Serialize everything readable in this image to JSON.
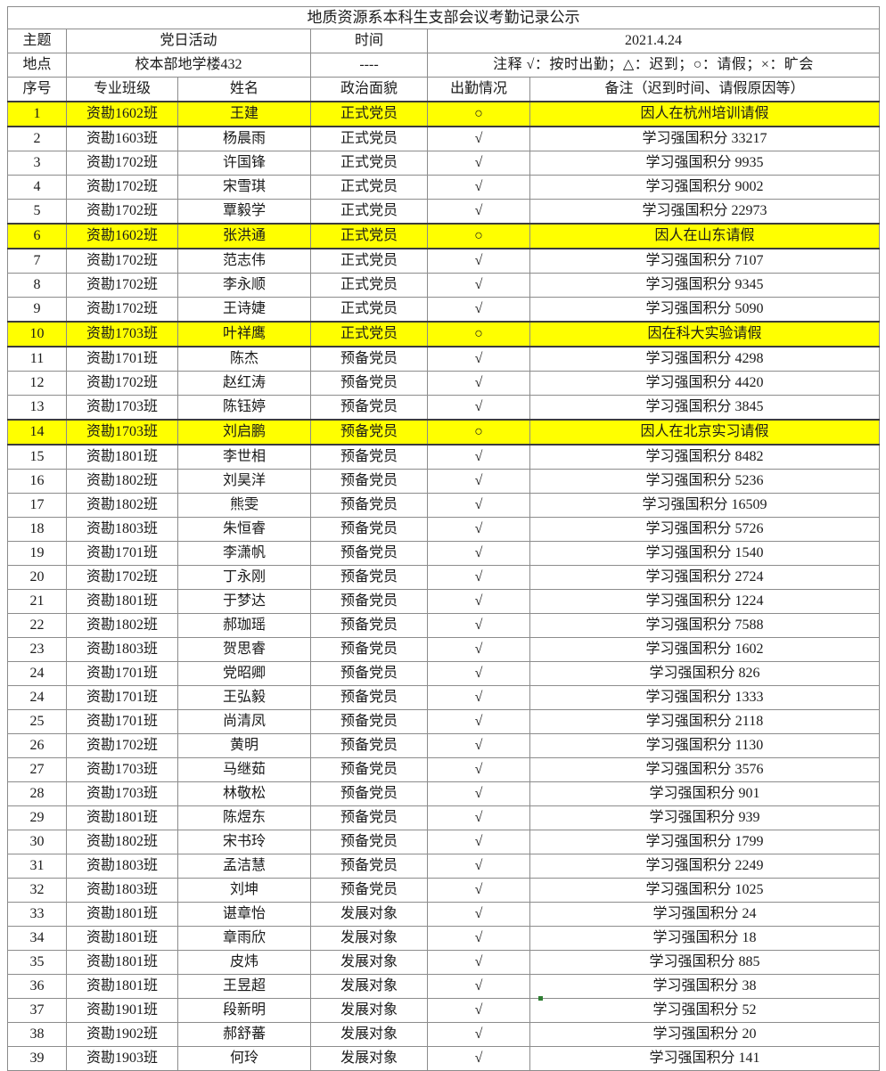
{
  "page": {
    "title": "地质资源系本科生支部会议考勤记录公示"
  },
  "info": {
    "subject_label": "主题",
    "subject_value": "党日活动",
    "time_label": "时间",
    "date_value": "2021.4.24",
    "location_label": "地点",
    "location_value": "校本部地学楼432",
    "time_dash": "----",
    "legend": "注释 √：按时出勤；△：迟到；○：请假；×：旷会"
  },
  "table": {
    "headers": [
      "序号",
      "专业班级",
      "姓名",
      "政治面貌",
      "出勤情况",
      "备注（迟到时间、请假原因等）"
    ],
    "rows": [
      {
        "no": "1",
        "class_name": "资勘1602班",
        "name": "王建",
        "status": "正式党员",
        "attend": "○",
        "note": "因人在杭州培训请假",
        "highlight": true
      },
      {
        "no": "2",
        "class_name": "资勘1603班",
        "name": "杨晨雨",
        "status": "正式党员",
        "attend": "√",
        "note": "学习强国积分 33217",
        "highlight": false
      },
      {
        "no": "3",
        "class_name": "资勘1702班",
        "name": "许国锋",
        "status": "正式党员",
        "attend": "√",
        "note": "学习强国积分 9935",
        "highlight": false
      },
      {
        "no": "4",
        "class_name": "资勘1702班",
        "name": "宋雪琪",
        "status": "正式党员",
        "attend": "√",
        "note": "学习强国积分 9002",
        "highlight": false
      },
      {
        "no": "5",
        "class_name": "资勘1702班",
        "name": "覃毅学",
        "status": "正式党员",
        "attend": "√",
        "note": "学习强国积分 22973",
        "highlight": false
      },
      {
        "no": "6",
        "class_name": "资勘1602班",
        "name": "张洪通",
        "status": "正式党员",
        "attend": "○",
        "note": "因人在山东请假",
        "highlight": true
      },
      {
        "no": "7",
        "class_name": "资勘1702班",
        "name": "范志伟",
        "status": "正式党员",
        "attend": "√",
        "note": "学习强国积分 7107",
        "highlight": false
      },
      {
        "no": "8",
        "class_name": "资勘1702班",
        "name": "李永顺",
        "status": "正式党员",
        "attend": "√",
        "note": "学习强国积分 9345",
        "highlight": false
      },
      {
        "no": "9",
        "class_name": "资勘1702班",
        "name": "王诗婕",
        "status": "正式党员",
        "attend": "√",
        "note": "学习强国积分 5090",
        "highlight": false
      },
      {
        "no": "10",
        "class_name": "资勘1703班",
        "name": "叶祥鹰",
        "status": "正式党员",
        "attend": "○",
        "note": "因在科大实验请假",
        "highlight": true
      },
      {
        "no": "11",
        "class_name": "资勘1701班",
        "name": "陈杰",
        "status": "预备党员",
        "attend": "√",
        "note": "学习强国积分 4298",
        "highlight": false
      },
      {
        "no": "12",
        "class_name": "资勘1702班",
        "name": "赵红涛",
        "status": "预备党员",
        "attend": "√",
        "note": "学习强国积分 4420",
        "highlight": false
      },
      {
        "no": "13",
        "class_name": "资勘1703班",
        "name": "陈钰婷",
        "status": "预备党员",
        "attend": "√",
        "note": "学习强国积分 3845",
        "highlight": false
      },
      {
        "no": "14",
        "class_name": "资勘1703班",
        "name": "刘启鹏",
        "status": "预备党员",
        "attend": "○",
        "note": "因人在北京实习请假",
        "highlight": true
      },
      {
        "no": "15",
        "class_name": "资勘1801班",
        "name": "李世相",
        "status": "预备党员",
        "attend": "√",
        "note": "学习强国积分 8482",
        "highlight": false
      },
      {
        "no": "16",
        "class_name": "资勘1802班",
        "name": "刘昊洋",
        "status": "预备党员",
        "attend": "√",
        "note": "学习强国积分 5236",
        "highlight": false
      },
      {
        "no": "17",
        "class_name": "资勘1802班",
        "name": "熊雯",
        "status": "预备党员",
        "attend": "√",
        "note": "学习强国积分 16509",
        "highlight": false
      },
      {
        "no": "18",
        "class_name": "资勘1803班",
        "name": "朱恒睿",
        "status": "预备党员",
        "attend": "√",
        "note": "学习强国积分 5726",
        "highlight": false
      },
      {
        "no": "19",
        "class_name": "资勘1701班",
        "name": "李潇帆",
        "status": "预备党员",
        "attend": "√",
        "note": "学习强国积分 1540",
        "highlight": false
      },
      {
        "no": "20",
        "class_name": "资勘1702班",
        "name": "丁永刚",
        "status": "预备党员",
        "attend": "√",
        "note": "学习强国积分 2724",
        "highlight": false
      },
      {
        "no": "21",
        "class_name": "资勘1801班",
        "name": "于梦达",
        "status": "预备党员",
        "attend": "√",
        "note": "学习强国积分 1224",
        "highlight": false
      },
      {
        "no": "22",
        "class_name": "资勘1802班",
        "name": "郝珈瑶",
        "status": "预备党员",
        "attend": "√",
        "note": "学习强国积分 7588",
        "highlight": false
      },
      {
        "no": "23",
        "class_name": "资勘1803班",
        "name": "贺思睿",
        "status": "预备党员",
        "attend": "√",
        "note": "学习强国积分 1602",
        "highlight": false
      },
      {
        "no": "24",
        "class_name": "资勘1701班",
        "name": "党昭卿",
        "status": "预备党员",
        "attend": "√",
        "note": "学习强国积分 826",
        "highlight": false
      },
      {
        "no": "24",
        "class_name": "资勘1701班",
        "name": "王弘毅",
        "status": "预备党员",
        "attend": "√",
        "note": "学习强国积分 1333",
        "highlight": false
      },
      {
        "no": "25",
        "class_name": "资勘1701班",
        "name": "尚清凤",
        "status": "预备党员",
        "attend": "√",
        "note": "学习强国积分 2118",
        "highlight": false
      },
      {
        "no": "26",
        "class_name": "资勘1702班",
        "name": "黄明",
        "status": "预备党员",
        "attend": "√",
        "note": "学习强国积分 1130",
        "highlight": false
      },
      {
        "no": "27",
        "class_name": "资勘1703班",
        "name": "马继茹",
        "status": "预备党员",
        "attend": "√",
        "note": "学习强国积分 3576",
        "highlight": false
      },
      {
        "no": "28",
        "class_name": "资勘1703班",
        "name": "林敬松",
        "status": "预备党员",
        "attend": "√",
        "note": "学习强国积分 901",
        "highlight": false
      },
      {
        "no": "29",
        "class_name": "资勘1801班",
        "name": "陈煜东",
        "status": "预备党员",
        "attend": "√",
        "note": "学习强国积分 939",
        "highlight": false
      },
      {
        "no": "30",
        "class_name": "资勘1802班",
        "name": "宋书玲",
        "status": "预备党员",
        "attend": "√",
        "note": "学习强国积分 1799",
        "highlight": false
      },
      {
        "no": "31",
        "class_name": "资勘1803班",
        "name": "孟洁慧",
        "status": "预备党员",
        "attend": "√",
        "note": "学习强国积分 2249",
        "highlight": false
      },
      {
        "no": "32",
        "class_name": "资勘1803班",
        "name": "刘坤",
        "status": "预备党员",
        "attend": "√",
        "note": "学习强国积分 1025",
        "highlight": false
      },
      {
        "no": "33",
        "class_name": "资勘1801班",
        "name": "谌章怡",
        "status": "发展对象",
        "attend": "√",
        "note": "学习强国积分 24",
        "highlight": false
      },
      {
        "no": "34",
        "class_name": "资勘1801班",
        "name": "章雨欣",
        "status": "发展对象",
        "attend": "√",
        "note": "学习强国积分 18",
        "highlight": false
      },
      {
        "no": "35",
        "class_name": "资勘1801班",
        "name": "皮炜",
        "status": "发展对象",
        "attend": "√",
        "note": "学习强国积分 885",
        "highlight": false
      },
      {
        "no": "36",
        "class_name": "资勘1801班",
        "name": "王昱超",
        "status": "发展对象",
        "attend": "√",
        "note": "学习强国积分 38",
        "highlight": false
      },
      {
        "no": "37",
        "class_name": "资勘1901班",
        "name": "段新明",
        "status": "发展对象",
        "attend": "√",
        "note": "学习强国积分 52",
        "highlight": false
      },
      {
        "no": "38",
        "class_name": "资勘1902班",
        "name": "郝舒蕃",
        "status": "发展对象",
        "attend": "√",
        "note": "学习强国积分 20",
        "highlight": false
      },
      {
        "no": "39",
        "class_name": "资勘1903班",
        "name": "何玲",
        "status": "发展对象",
        "attend": "√",
        "note": "学习强国积分 141",
        "highlight": false
      }
    ]
  },
  "colors": {
    "highlight": "#ffff00",
    "border": "#8c8c8c",
    "highlight_border": "#3c3c3c",
    "comment_marker": "#2e7d32"
  }
}
